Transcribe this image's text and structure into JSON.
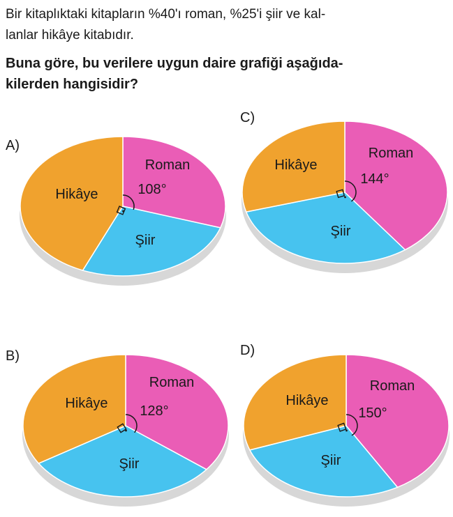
{
  "question": {
    "line1": "Bir kitaplıktaki kitapların %40'ı roman, %25'i şiir ve kal-",
    "line2": "lanlar hikâye kitabıdır.",
    "line3": "Buna göre, bu verilere uygun daire grafiği aşağıda-",
    "line4": "kilerden hangisidir?"
  },
  "colors": {
    "hikaye": "#f0a22e",
    "roman": "#ea5db6",
    "siir": "#47c3ef",
    "edge": "#d7d7d7"
  },
  "options": [
    {
      "id": "A",
      "label": "A)",
      "slices": {
        "hikaye": "Hikâye",
        "roman": "Roman",
        "siir": "Şiir"
      },
      "angle_label": "108°",
      "roman_degrees": 108
    },
    {
      "id": "B",
      "label": "B)",
      "slices": {
        "hikaye": "Hikâye",
        "roman": "Roman",
        "siir": "Şiir"
      },
      "angle_label": "128°",
      "roman_degrees": 128
    },
    {
      "id": "C",
      "label": "C)",
      "slices": {
        "hikaye": "Hikâye",
        "roman": "Roman",
        "siir": "Şiir"
      },
      "angle_label": "144°",
      "roman_degrees": 144
    },
    {
      "id": "D",
      "label": "D)",
      "slices": {
        "hikaye": "Hikâye",
        "roman": "Roman",
        "siir": "Şiir"
      },
      "angle_label": "150°",
      "roman_degrees": 150
    }
  ]
}
